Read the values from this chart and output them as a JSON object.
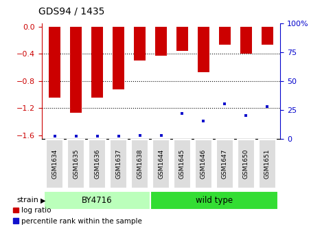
{
  "title": "GDS94 / 1435",
  "samples": [
    "GSM1634",
    "GSM1635",
    "GSM1636",
    "GSM1637",
    "GSM1638",
    "GSM1644",
    "GSM1645",
    "GSM1646",
    "GSM1647",
    "GSM1650",
    "GSM1651"
  ],
  "log_ratios": [
    -1.05,
    -1.27,
    -1.05,
    -0.93,
    -0.5,
    -0.43,
    -0.36,
    -0.67,
    -0.27,
    -0.4,
    -0.27
  ],
  "percentile_ranks": [
    2,
    2,
    2,
    2,
    3,
    3,
    22,
    15,
    30,
    20,
    28
  ],
  "ylim_left": [
    -1.65,
    0.05
  ],
  "ylim_right": [
    0,
    100
  ],
  "yticks_left": [
    0.0,
    -0.4,
    -0.8,
    -1.2,
    -1.6
  ],
  "yticks_right": [
    0,
    25,
    50,
    75,
    100
  ],
  "bar_color": "#cc0000",
  "dot_color": "#1111cc",
  "bar_width": 0.55,
  "strain_groups": [
    {
      "label": "BY4716",
      "start": 0,
      "end": 5,
      "color": "#bbffbb"
    },
    {
      "label": "wild type",
      "start": 5,
      "end": 11,
      "color": "#33dd33"
    }
  ],
  "strain_label": "strain",
  "legend_bar_label": "log ratio",
  "legend_dot_label": "percentile rank within the sample",
  "background_color": "#ffffff",
  "plot_bg": "#ffffff",
  "tick_color_left": "#cc0000",
  "tick_color_right": "#0000cc",
  "xtick_bg": "#dddddd",
  "title_fontsize": 10,
  "xlabel_fontsize": 7
}
